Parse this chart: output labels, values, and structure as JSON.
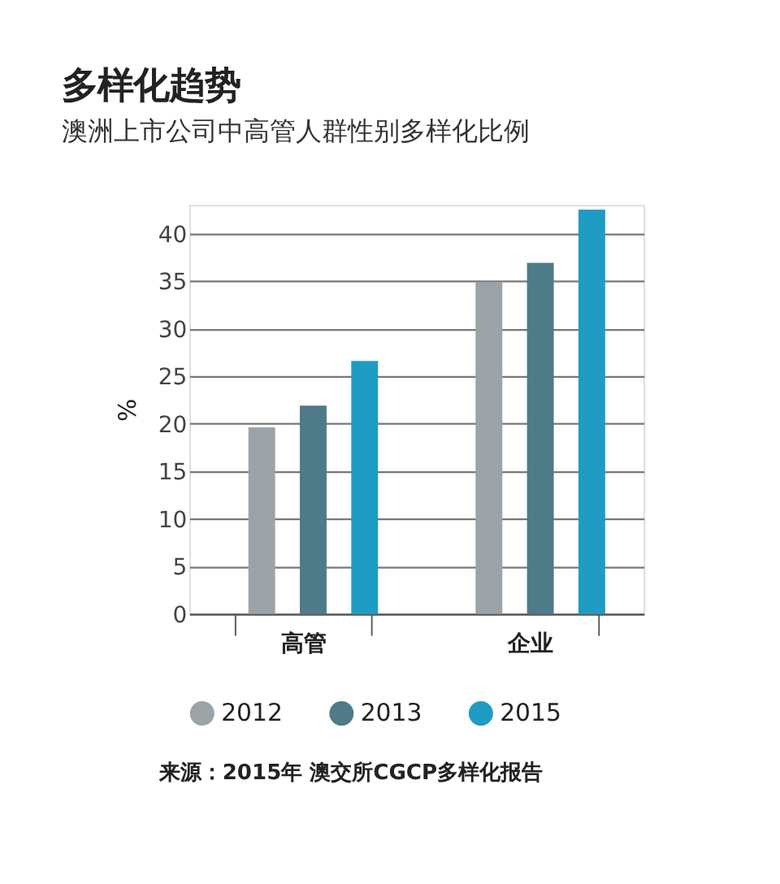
{
  "chart_data": {
    "type": "bar",
    "title": "多样化趋势",
    "subtitle": "澳洲上市公司中高管人群性别多样化比例",
    "ylabel": "%",
    "categories": [
      "高管",
      "企业"
    ],
    "series": [
      {
        "name": "2012",
        "color": "#9ca3a6",
        "values": [
          19.6,
          34.9
        ]
      },
      {
        "name": "2013",
        "color": "#4f7a88",
        "values": [
          21.9,
          36.9
        ]
      },
      {
        "name": "2015",
        "color": "#1f9cc4",
        "values": [
          26.6,
          42.5
        ]
      }
    ],
    "ylim": [
      0,
      43
    ],
    "yticks": [
      0,
      5,
      10,
      15,
      20,
      25,
      30,
      35,
      40
    ],
    "grid": "y",
    "legend": "bottom",
    "annotations": [
      "来源：2015年 澳交所CGCP多样化报告"
    ]
  }
}
